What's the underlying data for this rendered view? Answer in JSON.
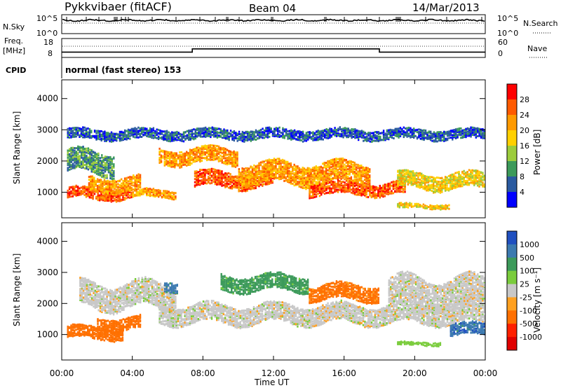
{
  "header": {
    "site": "Pykkvibaer (fitACF)",
    "beam": "Beam 04",
    "date": "14/Mar/2013"
  },
  "noise_panel": {
    "left_label": "N.Sky",
    "left_ticks": [
      "10^5",
      "10^0"
    ],
    "right_ticks": [
      "10^5",
      "10^0"
    ],
    "right_label": "N.Search"
  },
  "freq_panel": {
    "left_label_top": "Freq.",
    "left_label_unit": "[MHz]",
    "left_ticks": [
      "18",
      "8"
    ],
    "right_ticks": [
      "60",
      "0"
    ],
    "right_label": "Nave"
  },
  "cpid": {
    "label": "CPID",
    "text": "normal (fast stereo) 153"
  },
  "power_panel": {
    "ylabel": "Slant Range [km]",
    "cbar_label": "Power [dB]",
    "cbar_ticks": [
      "28",
      "24",
      "20",
      "16",
      "12",
      "8",
      "4"
    ],
    "cbar_colors": [
      "#ff0000",
      "#ff5a00",
      "#ff9a00",
      "#ffd000",
      "#9ccc3c",
      "#3c9a5a",
      "#2a5aa0",
      "#0000ff"
    ]
  },
  "velocity_panel": {
    "ylabel": "Slant Range [km]",
    "cbar_label": "Velocity [m s⁻¹]",
    "cbar_ticks": [
      "1000",
      "500",
      "100",
      "25",
      "-25",
      "-100",
      "-500",
      "-1000"
    ],
    "cbar_colors": [
      "#2050c0",
      "#3c7ab0",
      "#3c9a5a",
      "#7acc3c",
      "#c8c8c8",
      "#ffa020",
      "#ff7000",
      "#ff2000",
      "#e00000"
    ]
  },
  "xaxis": {
    "label": "Time UT",
    "ticks": [
      "00:00",
      "04:00",
      "08:00",
      "12:00",
      "16:00",
      "20:00",
      "00:00"
    ]
  },
  "chart_data": {
    "type": "heatmap",
    "title": "Pykkvibaer (fitACF)",
    "subtitle": "Beam 04  14/Mar/2013",
    "xlabel": "Time UT",
    "ylabel": "Slant Range [km]",
    "x_ticks_hours": [
      0,
      4,
      8,
      12,
      16,
      20,
      24
    ],
    "ylim": [
      180,
      4600
    ],
    "y_ticks": [
      1000,
      2000,
      3000,
      4000
    ],
    "frequency_MHz": [
      {
        "start_h": 0,
        "end_h": 7.4,
        "value": 10.2
      },
      {
        "start_h": 7.4,
        "end_h": 18.0,
        "value": 12.4
      },
      {
        "start_h": 18.0,
        "end_h": 24,
        "value": 10.2
      }
    ],
    "power": {
      "units": "dB",
      "levels": [
        4,
        8,
        12,
        16,
        20,
        24,
        28
      ],
      "bands": [
        {
          "t0": 0.3,
          "t1": 4.0,
          "r_center": 1000,
          "r_width": 350,
          "level": 28
        },
        {
          "t0": 1.5,
          "t1": 4.5,
          "r_center": 1300,
          "r_width": 450,
          "level": 24
        },
        {
          "t0": 4.0,
          "t1": 6.5,
          "r_center": 1000,
          "r_width": 250,
          "level": 24
        },
        {
          "t0": 5.5,
          "t1": 10.0,
          "r_center": 2200,
          "r_width": 500,
          "level": 24
        },
        {
          "t0": 7.5,
          "t1": 12.0,
          "r_center": 1450,
          "r_width": 500,
          "level": 28
        },
        {
          "t0": 10.0,
          "t1": 17.5,
          "r_center": 1650,
          "r_width": 650,
          "level": 24
        },
        {
          "t0": 14.0,
          "t1": 19.5,
          "r_center": 1150,
          "r_width": 400,
          "level": 28
        },
        {
          "t0": 19.0,
          "t1": 24,
          "r_center": 1400,
          "r_width": 500,
          "level": 20
        },
        {
          "t0": 0.3,
          "t1": 24,
          "r_center": 2900,
          "r_width": 300,
          "level": 8
        },
        {
          "t0": 0.3,
          "t1": 3.0,
          "r_center": 2000,
          "r_width": 700,
          "level": 12
        },
        {
          "t0": 19.0,
          "t1": 22.0,
          "r_center": 600,
          "r_width": 150,
          "level": 20
        }
      ]
    },
    "velocity": {
      "units": "m s^-1",
      "levels": [
        -1000,
        -500,
        -100,
        -25,
        25,
        100,
        500,
        1000
      ],
      "bands": [
        {
          "t0": 0.3,
          "t1": 3.5,
          "r_center": 1100,
          "r_width": 400,
          "value": -300
        },
        {
          "t0": 2.0,
          "t1": 4.5,
          "r_center": 1400,
          "r_width": 400,
          "value": -200
        },
        {
          "t0": 1.0,
          "t1": 6.5,
          "r_center": 2300,
          "r_width": 800,
          "value": 0
        },
        {
          "t0": 5.5,
          "t1": 24,
          "r_center": 1700,
          "r_width": 600,
          "value": 0
        },
        {
          "t0": 5.8,
          "t1": 6.6,
          "r_center": 2600,
          "r_width": 300,
          "value": 700
        },
        {
          "t0": 9.0,
          "t1": 14.0,
          "r_center": 2700,
          "r_width": 500,
          "value": 150
        },
        {
          "t0": 14.0,
          "t1": 18.0,
          "r_center": 2400,
          "r_width": 500,
          "value": -150
        },
        {
          "t0": 18.5,
          "t1": 24,
          "r_center": 2400,
          "r_width": 900,
          "value": 0
        },
        {
          "t0": 19.0,
          "t1": 21.5,
          "r_center": 750,
          "r_width": 120,
          "value": 60
        },
        {
          "t0": 22.0,
          "t1": 24,
          "r_center": 1200,
          "r_width": 400,
          "value": 800
        }
      ]
    }
  }
}
